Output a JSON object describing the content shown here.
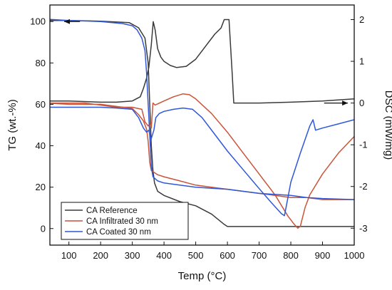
{
  "chart_data": {
    "type": "line",
    "title": "",
    "xlabel": "Temp (°C)",
    "ylabel_left": "TG (wt.-%)",
    "ylabel_right": "DSC (mW/mg)",
    "xlim": [
      40,
      1000
    ],
    "ylim_left": [
      -8,
      108
    ],
    "ylim_right": [
      -3.405,
      2.35
    ],
    "x_ticks": [
      100,
      200,
      300,
      400,
      500,
      600,
      700,
      800,
      900,
      1000
    ],
    "y_left_ticks": [
      0,
      20,
      40,
      60,
      80,
      100
    ],
    "y_right_ticks": [
      -3,
      -2,
      -1,
      0,
      1,
      2
    ],
    "grid": false,
    "legend_position": "bottom-left",
    "arrows": [
      {
        "label": "tg-axis-arrow",
        "direction": "left",
        "from": [
          135,
          100
        ],
        "to": [
          85,
          100
        ]
      },
      {
        "label": "dsc-axis-arrow",
        "direction": "right",
        "from": [
          905,
          0
        ],
        "to": [
          980,
          0
        ]
      }
    ],
    "series": [
      {
        "name": "CA Reference",
        "color": "#3a3a3a",
        "tg": [
          [
            40,
            100.5
          ],
          [
            100,
            100.5
          ],
          [
            200,
            100.2
          ],
          [
            290,
            99.5
          ],
          [
            320,
            97
          ],
          [
            340,
            92
          ],
          [
            350,
            80
          ],
          [
            355,
            60
          ],
          [
            360,
            40
          ],
          [
            365,
            28
          ],
          [
            370,
            22
          ],
          [
            380,
            18
          ],
          [
            400,
            16
          ],
          [
            450,
            13
          ],
          [
            500,
            11
          ],
          [
            550,
            7
          ],
          [
            590,
            2
          ],
          [
            600,
            1
          ],
          [
            700,
            1
          ],
          [
            800,
            1
          ],
          [
            900,
            1
          ],
          [
            1000,
            1
          ]
        ],
        "dsc": [
          [
            40,
            0.05
          ],
          [
            100,
            0.05
          ],
          [
            200,
            0.02
          ],
          [
            250,
            0.02
          ],
          [
            300,
            0.05
          ],
          [
            325,
            0.15
          ],
          [
            335,
            0.35
          ],
          [
            345,
            0.6
          ],
          [
            352,
            0.85
          ],
          [
            360,
            1.4
          ],
          [
            366,
            1.95
          ],
          [
            372,
            1.75
          ],
          [
            380,
            1.3
          ],
          [
            390,
            1.1
          ],
          [
            400,
            1.0
          ],
          [
            420,
            0.9
          ],
          [
            440,
            0.85
          ],
          [
            470,
            0.88
          ],
          [
            500,
            1.05
          ],
          [
            530,
            1.35
          ],
          [
            560,
            1.65
          ],
          [
            580,
            1.8
          ],
          [
            590,
            2.0
          ],
          [
            605,
            2.0
          ],
          [
            615,
            0.7
          ],
          [
            620,
            0.0
          ],
          [
            660,
            0.0
          ],
          [
            700,
            0.0
          ],
          [
            800,
            0.02
          ],
          [
            900,
            0.05
          ],
          [
            1000,
            0.1
          ]
        ]
      },
      {
        "name": "CA Infiltrated 30 nm",
        "color": "#c8543a",
        "tg": [
          [
            40,
            60.5
          ],
          [
            100,
            60
          ],
          [
            200,
            60
          ],
          [
            250,
            59
          ],
          [
            300,
            58
          ],
          [
            320,
            55
          ],
          [
            335,
            52
          ],
          [
            345,
            48
          ],
          [
            350,
            42
          ],
          [
            355,
            32
          ],
          [
            360,
            28
          ],
          [
            380,
            26
          ],
          [
            400,
            25
          ],
          [
            450,
            23
          ],
          [
            500,
            21
          ],
          [
            550,
            20
          ],
          [
            600,
            19
          ],
          [
            650,
            18
          ],
          [
            700,
            17
          ],
          [
            750,
            16
          ],
          [
            800,
            15
          ],
          [
            850,
            15
          ],
          [
            900,
            14
          ],
          [
            950,
            14
          ],
          [
            1000,
            14
          ]
        ],
        "dsc": [
          [
            40,
            0.0
          ],
          [
            100,
            0.0
          ],
          [
            150,
            0.0
          ],
          [
            200,
            -0.05
          ],
          [
            250,
            -0.1
          ],
          [
            300,
            -0.1
          ],
          [
            330,
            -0.15
          ],
          [
            340,
            -0.45
          ],
          [
            350,
            -0.55
          ],
          [
            356,
            -0.5
          ],
          [
            360,
            -0.6
          ],
          [
            365,
            0.0
          ],
          [
            372,
            -0.05
          ],
          [
            380,
            -0.02
          ],
          [
            400,
            0.05
          ],
          [
            430,
            0.15
          ],
          [
            460,
            0.22
          ],
          [
            480,
            0.2
          ],
          [
            500,
            0.1
          ],
          [
            550,
            -0.25
          ],
          [
            600,
            -0.7
          ],
          [
            650,
            -1.2
          ],
          [
            700,
            -1.7
          ],
          [
            750,
            -2.2
          ],
          [
            790,
            -2.7
          ],
          [
            810,
            -2.9
          ],
          [
            822,
            -3.0
          ],
          [
            830,
            -2.95
          ],
          [
            845,
            -2.5
          ],
          [
            860,
            -2.2
          ],
          [
            900,
            -1.7
          ],
          [
            950,
            -1.2
          ],
          [
            1000,
            -0.8
          ]
        ]
      },
      {
        "name": "CA Coated 30 nm",
        "color": "#2f57d8",
        "tg": [
          [
            40,
            101
          ],
          [
            100,
            100.5
          ],
          [
            200,
            100
          ],
          [
            270,
            99
          ],
          [
            300,
            98
          ],
          [
            315,
            96
          ],
          [
            330,
            92
          ],
          [
            340,
            86
          ],
          [
            345,
            75
          ],
          [
            350,
            60
          ],
          [
            355,
            45
          ],
          [
            360,
            30
          ],
          [
            365,
            25
          ],
          [
            380,
            23
          ],
          [
            400,
            22
          ],
          [
            500,
            20
          ],
          [
            600,
            19
          ],
          [
            700,
            17
          ],
          [
            800,
            16
          ],
          [
            850,
            15
          ],
          [
            900,
            14.5
          ],
          [
            1000,
            14
          ]
        ],
        "dsc": [
          [
            40,
            -0.1
          ],
          [
            100,
            -0.1
          ],
          [
            200,
            -0.1
          ],
          [
            250,
            -0.12
          ],
          [
            300,
            -0.15
          ],
          [
            320,
            -0.35
          ],
          [
            335,
            -0.6
          ],
          [
            345,
            -0.7
          ],
          [
            352,
            -0.65
          ],
          [
            356,
            -0.8
          ],
          [
            360,
            -0.85
          ],
          [
            368,
            -0.65
          ],
          [
            374,
            -0.35
          ],
          [
            385,
            -0.25
          ],
          [
            400,
            -0.2
          ],
          [
            430,
            -0.15
          ],
          [
            460,
            -0.12
          ],
          [
            490,
            -0.15
          ],
          [
            520,
            -0.35
          ],
          [
            560,
            -0.75
          ],
          [
            600,
            -1.15
          ],
          [
            650,
            -1.6
          ],
          [
            700,
            -2.05
          ],
          [
            740,
            -2.4
          ],
          [
            770,
            -2.65
          ],
          [
            780,
            -2.7
          ],
          [
            790,
            -2.3
          ],
          [
            800,
            -1.9
          ],
          [
            830,
            -1.2
          ],
          [
            860,
            -0.55
          ],
          [
            870,
            -0.4
          ],
          [
            878,
            -0.65
          ],
          [
            900,
            -0.6
          ],
          [
            950,
            -0.5
          ],
          [
            1000,
            -0.4
          ]
        ]
      }
    ]
  }
}
